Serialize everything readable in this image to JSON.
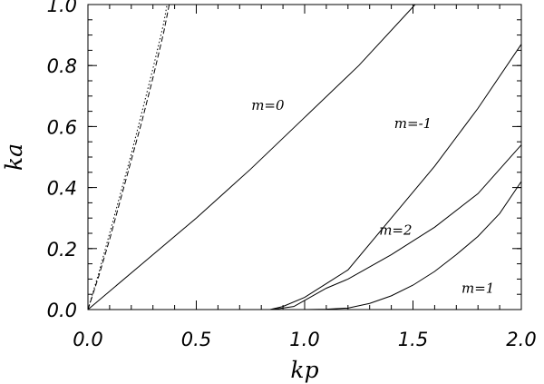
{
  "chart_data": {
    "type": "line",
    "title": "",
    "xlabel": "kp",
    "ylabel": "ka",
    "xlim": [
      0,
      2
    ],
    "ylim": [
      0,
      1
    ],
    "grid": false,
    "x_ticks": [
      {
        "value": 0,
        "label": "0.0"
      },
      {
        "value": 0.5,
        "label": "0.5"
      },
      {
        "value": 1,
        "label": "1.0"
      },
      {
        "value": 1.5,
        "label": "1.5"
      },
      {
        "value": 2,
        "label": "2.0"
      }
    ],
    "y_ticks": [
      {
        "value": 0,
        "label": "0.0"
      },
      {
        "value": 0.2,
        "label": "0.2"
      },
      {
        "value": 0.4,
        "label": "0.4"
      },
      {
        "value": 0.6,
        "label": "0.6"
      },
      {
        "value": 0.8,
        "label": "0.8"
      },
      {
        "value": 1,
        "label": "1.0"
      }
    ],
    "series": [
      {
        "label": "m=0",
        "style": "solid",
        "x": [
          0,
          0.25,
          0.5,
          0.75,
          1.0,
          1.25,
          1.51
        ],
        "y": [
          0,
          0.15,
          0.3,
          0.46,
          0.63,
          0.8,
          1.0
        ],
        "label_at": [
          0.83,
          0.67
        ]
      },
      {
        "label": "m=-1",
        "style": "solid",
        "x": [
          0.84,
          0.9,
          1.0,
          1.1,
          1.2,
          1.4,
          1.6,
          1.8,
          2.0
        ],
        "y": [
          0,
          0.01,
          0.04,
          0.085,
          0.13,
          0.3,
          0.47,
          0.66,
          0.87
        ],
        "label_at": [
          1.5,
          0.61
        ]
      },
      {
        "label": "m=2",
        "style": "solid",
        "x": [
          0.85,
          0.95,
          1.0,
          1.1,
          1.2,
          1.4,
          1.6,
          1.8,
          2.0
        ],
        "y": [
          0,
          0.01,
          0.03,
          0.07,
          0.1,
          0.18,
          0.27,
          0.38,
          0.54
        ],
        "label_at": [
          1.42,
          0.26
        ]
      },
      {
        "label": "m=1",
        "style": "solid",
        "x": [
          1.0,
          1.1,
          1.2,
          1.3,
          1.4,
          1.5,
          1.6,
          1.7,
          1.8,
          1.9,
          2.0
        ],
        "y": [
          0,
          0.001,
          0.005,
          0.02,
          0.045,
          0.08,
          0.125,
          0.18,
          0.24,
          0.315,
          0.42
        ],
        "label_at": [
          1.8,
          0.07
        ]
      },
      {
        "label": "",
        "style": "dashed",
        "x": [
          0,
          0.05,
          0.1,
          0.15,
          0.2,
          0.25,
          0.3,
          0.35,
          0.375
        ],
        "y": [
          0,
          0.11,
          0.23,
          0.36,
          0.49,
          0.62,
          0.76,
          0.91,
          1.0
        ]
      },
      {
        "label": "",
        "style": "dotted",
        "x": [
          0,
          0.05,
          0.1,
          0.15,
          0.2,
          0.25,
          0.3,
          0.35,
          0.365
        ],
        "y": [
          0,
          0.12,
          0.25,
          0.38,
          0.51,
          0.65,
          0.79,
          0.94,
          1.0
        ]
      }
    ]
  }
}
